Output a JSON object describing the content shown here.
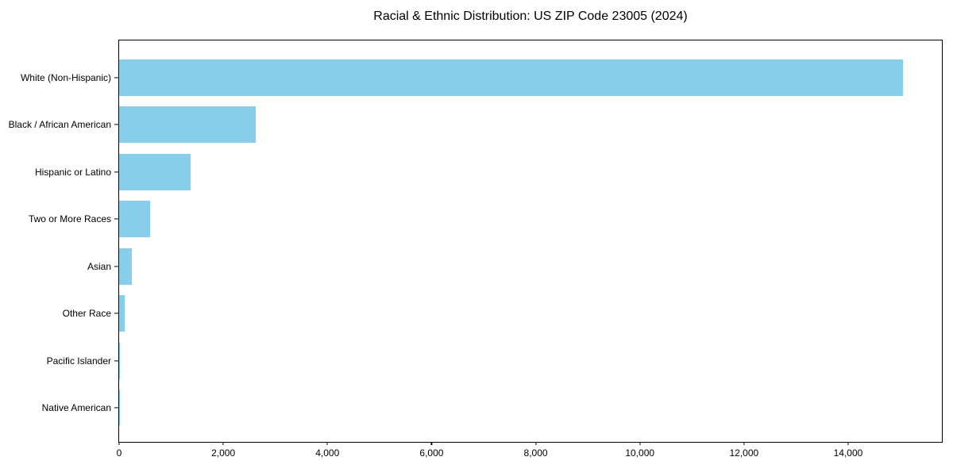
{
  "title": "Racial & Ethnic Distribution: US ZIP Code 23005 (2024)",
  "chart_data": {
    "type": "bar",
    "orientation": "horizontal",
    "title": "Racial & Ethnic Distribution: US ZIP Code 23005 (2024)",
    "categories": [
      "White (Non-Hispanic)",
      "Black / African American",
      "Hispanic or Latino",
      "Two or More Races",
      "Asian",
      "Other Race",
      "Pacific Islander",
      "Native American"
    ],
    "values": [
      15050,
      2620,
      1370,
      600,
      250,
      110,
      10,
      5
    ],
    "xlabel": "",
    "ylabel": "",
    "xlim": [
      0,
      15800
    ],
    "xticks": [
      0,
      2000,
      4000,
      6000,
      8000,
      10000,
      12000,
      14000
    ],
    "xtick_labels": [
      "0",
      "2,000",
      "4,000",
      "6,000",
      "8,000",
      "10,000",
      "12,000",
      "14,000"
    ],
    "grid": false,
    "legend": null,
    "bar_color": "#87CEEB",
    "frame_color": "#000000",
    "background_color": "#ffffff",
    "text_color": "#000000"
  }
}
